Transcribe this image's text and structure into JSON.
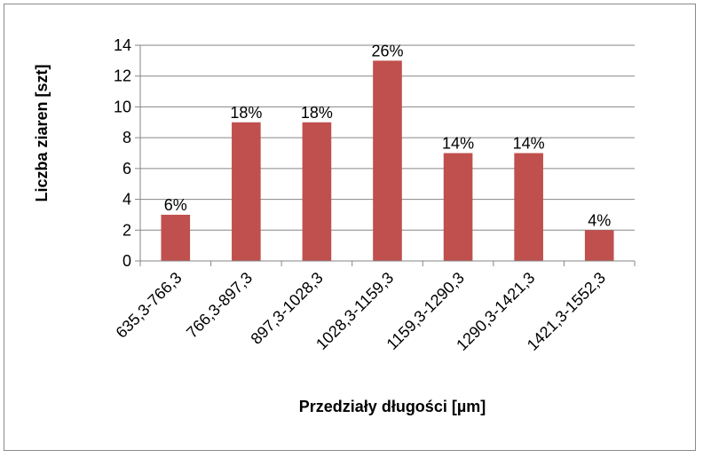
{
  "chart_data": {
    "type": "bar",
    "title": "",
    "xlabel": "Przedziały długości [µm]",
    "ylabel": "Liczba ziaren  [szt]",
    "categories": [
      "635,3-766,3",
      "766,3-897,3",
      "897,3-1028,3",
      "1028,3-1159,3",
      "1159,3-1290,3",
      "1290,3-1421,3",
      "1421,3-1552,3"
    ],
    "values": [
      3,
      9,
      9,
      13,
      7,
      7,
      2
    ],
    "data_labels": [
      "6%",
      "18%",
      "18%",
      "26%",
      "14%",
      "14%",
      "4%"
    ],
    "ylim": [
      0,
      14
    ],
    "yticks": [
      0,
      2,
      4,
      6,
      8,
      10,
      12,
      14
    ],
    "grid": true,
    "legend": "none",
    "bar_color": "#C0504D",
    "grid_color": "#868686"
  }
}
